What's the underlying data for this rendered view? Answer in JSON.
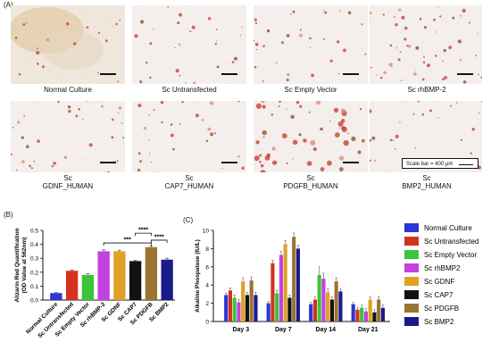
{
  "panel_a": {
    "label": "(A)",
    "images": [
      {
        "caption": "Normal Culture"
      },
      {
        "caption": "Sc Untransfected"
      },
      {
        "caption": "Sc Empty Vector"
      },
      {
        "caption": "Sc rhBMP-2"
      },
      {
        "caption": "Sc\nGDNF_HUMAN"
      },
      {
        "caption": "Sc\nCAP7_HUMAN"
      },
      {
        "caption": "Sc\nPDGFB_HUMAN"
      },
      {
        "caption": "Sc\nBMP2_HUMAN"
      }
    ],
    "scale_bar_text": "Scale bar = 400 μm"
  },
  "panel_b": {
    "label": "(B)"
  },
  "panel_c": {
    "label": "(C)"
  },
  "chart_data": [
    {
      "type": "bar",
      "panel": "B",
      "ylabel_line1": "Alizarin Red Quantification",
      "ylabel_line2": "(OD Value at 562nm)",
      "categories": [
        "Normal Culture",
        "Sc Untransfected",
        "Sc Empty Vector",
        "Sc rhBMP-2",
        "Sc GDNF",
        "Sc CAP7",
        "Sc PDGFB",
        "Sc BMP2"
      ],
      "values": [
        0.05,
        0.21,
        0.18,
        0.35,
        0.35,
        0.28,
        0.38,
        0.29
      ],
      "errors": [
        0.005,
        0.005,
        0.01,
        0.01,
        0.008,
        0.005,
        0.01,
        0.01
      ],
      "colors": [
        "#2d35d6",
        "#d4321e",
        "#3cc43a",
        "#c441e0",
        "#e0a126",
        "#111111",
        "#9b7432",
        "#1a1a8c"
      ],
      "ylim": [
        0,
        0.5
      ],
      "yticks": [
        "0.0",
        "0.1",
        "0.2",
        "0.3",
        "0.4",
        "0.5"
      ],
      "significance": [
        {
          "from": 3,
          "to": 6,
          "label": "***"
        },
        {
          "from": 5,
          "to": 6,
          "label": "****"
        },
        {
          "from": 6,
          "to": 7,
          "label": "****"
        }
      ]
    },
    {
      "type": "bar",
      "panel": "C",
      "ylabel": "Alkaline Phospatase (IU/L)",
      "categories": [
        "Day 3",
        "Day 7",
        "Day 14",
        "Day 21"
      ],
      "ylim": [
        0,
        10
      ],
      "yticks": [
        "0",
        "2",
        "4",
        "6",
        "8",
        "10"
      ],
      "series": [
        {
          "name": "Normal Culture",
          "color": "#2d35d6",
          "values": [
            2.9,
            2.0,
            1.9,
            1.9
          ],
          "errors": [
            0.2,
            0.2,
            0.2,
            0.2
          ]
        },
        {
          "name": "Sc Untransfected",
          "color": "#d4321e",
          "values": [
            3.4,
            6.4,
            2.4,
            1.3
          ],
          "errors": [
            0.3,
            0.3,
            0.3,
            0.2
          ]
        },
        {
          "name": "Sc Empty Vector",
          "color": "#3cc43a",
          "values": [
            2.6,
            3.1,
            5.1,
            1.5
          ],
          "errors": [
            0.3,
            0.3,
            0.9,
            0.3
          ]
        },
        {
          "name": "Sc rhBMP2",
          "color": "#c441e0",
          "values": [
            2.1,
            7.3,
            4.7,
            1.1
          ],
          "errors": [
            0.3,
            0.4,
            0.6,
            0.3
          ]
        },
        {
          "name": "Sc GDNF",
          "color": "#e0a126",
          "values": [
            4.4,
            8.5,
            3.2,
            2.4
          ],
          "errors": [
            0.4,
            0.4,
            0.4,
            0.3
          ]
        },
        {
          "name": "Sc CAP7",
          "color": "#111111",
          "values": [
            2.9,
            2.6,
            2.4,
            1.0
          ],
          "errors": [
            0.3,
            0.3,
            0.3,
            0.3
          ]
        },
        {
          "name": "Sc PDGFB",
          "color": "#9b7432",
          "values": [
            4.5,
            9.3,
            4.4,
            2.4
          ],
          "errors": [
            0.4,
            0.4,
            0.4,
            0.3
          ]
        },
        {
          "name": "Sc BMP2",
          "color": "#1a1a8c",
          "values": [
            2.9,
            8.0,
            3.3,
            1.5
          ],
          "errors": [
            0.3,
            0.4,
            0.3,
            0.3
          ]
        }
      ]
    }
  ]
}
